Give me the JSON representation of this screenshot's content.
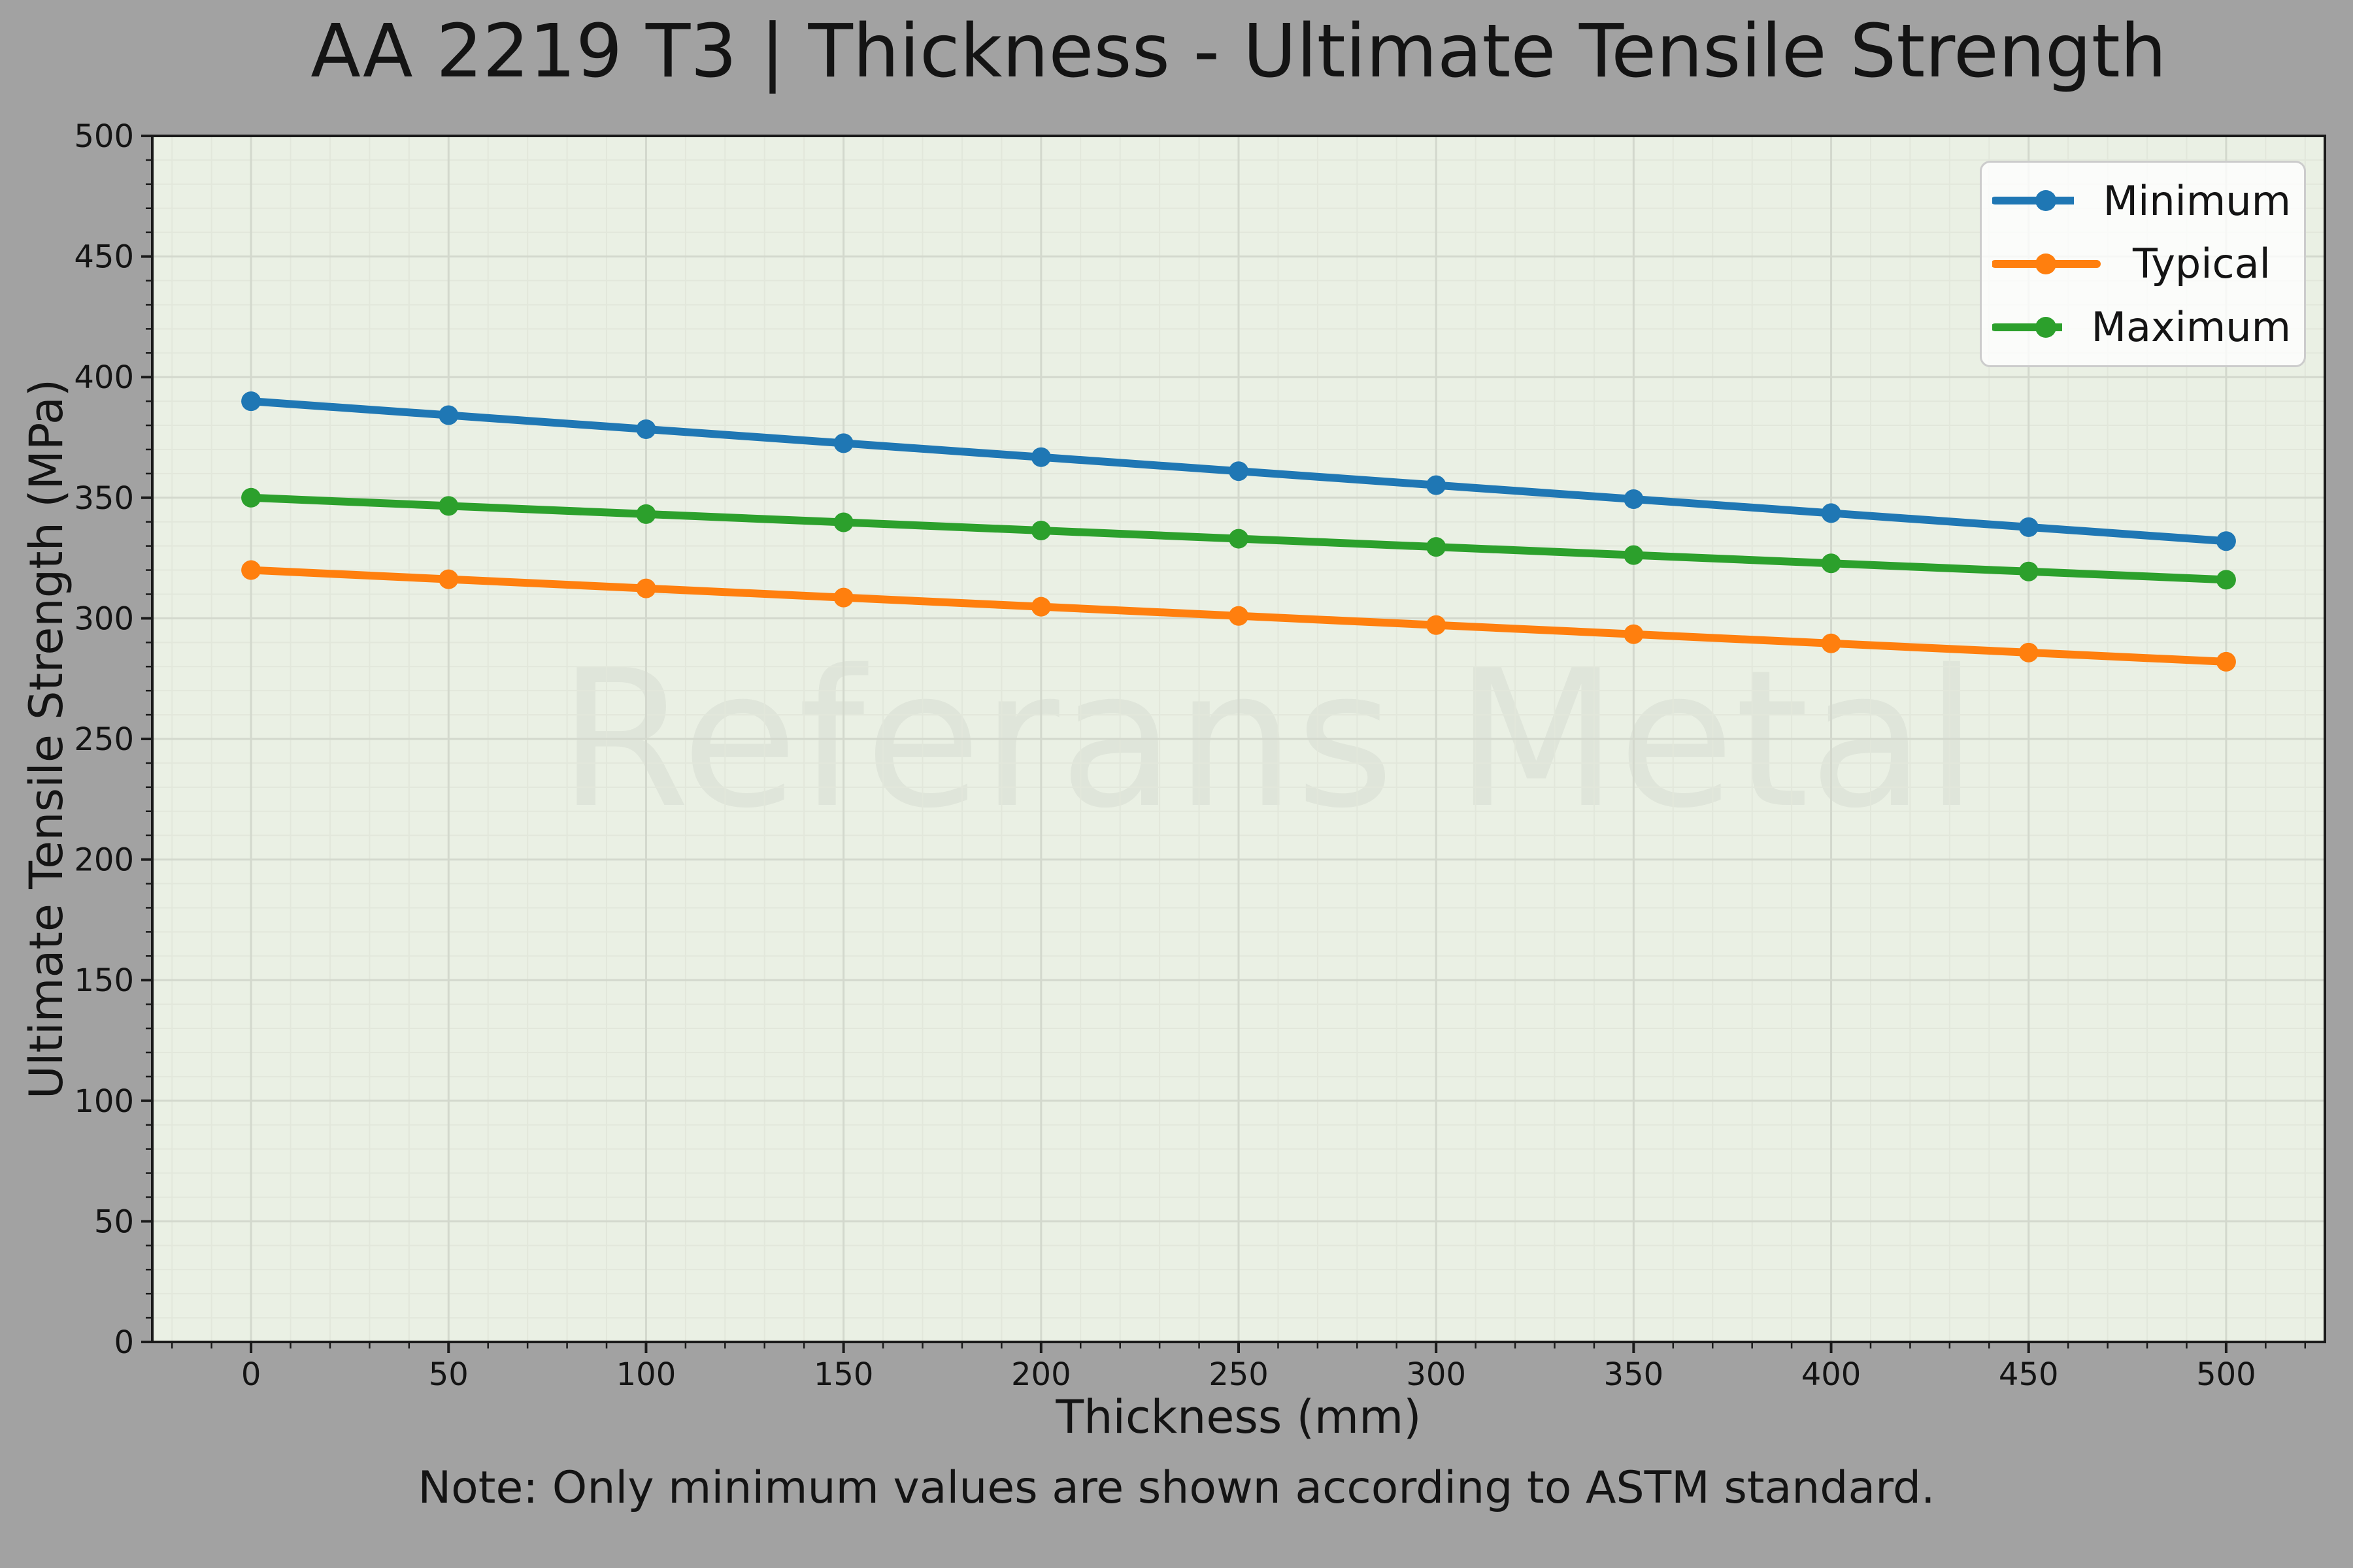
{
  "chart_data": {
    "type": "line",
    "title": "AA 2219 T3 | Thickness - Ultimate Tensile Strength",
    "xlabel": "Thickness (mm)",
    "ylabel": "Ultimate Tensile Strength (MPa)",
    "note": "Note: Only minimum values are shown according to ASTM standard.",
    "watermark": "Referans Metal",
    "x": [
      0,
      50,
      100,
      150,
      200,
      250,
      300,
      350,
      400,
      450,
      500
    ],
    "series": [
      {
        "name": "Minimum",
        "color": "#1f77b4",
        "values": [
          390,
          384.2,
          378.4,
          372.6,
          366.8,
          361,
          355.2,
          349.4,
          343.6,
          337.8,
          332
        ]
      },
      {
        "name": "Typical",
        "color": "#ff7f0e",
        "values": [
          320,
          316.2,
          312.4,
          308.6,
          304.8,
          301,
          297.2,
          293.4,
          289.6,
          285.8,
          282
        ]
      },
      {
        "name": "Maximum",
        "color": "#2ca02c",
        "values": [
          350,
          346.6,
          343.2,
          339.8,
          336.4,
          333,
          329.6,
          326.2,
          322.8,
          319.4,
          316
        ]
      }
    ],
    "xlim": [
      -25,
      525
    ],
    "ylim": [
      0,
      500
    ],
    "x_ticks": [
      0,
      50,
      100,
      150,
      200,
      250,
      300,
      350,
      400,
      450,
      500
    ],
    "y_ticks": [
      0,
      50,
      100,
      150,
      200,
      250,
      300,
      350,
      400,
      450,
      500
    ],
    "minor_tick_step": 10,
    "grid": true,
    "legend_position": "upper right",
    "legend_labels": [
      "Minimum",
      "Typical",
      "Maximum"
    ]
  },
  "style": {
    "figure_bg": "#a2a2a2",
    "plot_bg": "#eaf0e4",
    "grid_major": "#d3d8cd",
    "grid_minor": "#e2e7db",
    "spine": "#1a1a1a",
    "tick_color": "#1a1a1a",
    "text_color": "#141414",
    "watermark_color": "rgba(0,0,0,0.045)",
    "legend_bg": "rgba(255,255,255,0.8)",
    "legend_border": "#cccccc"
  }
}
